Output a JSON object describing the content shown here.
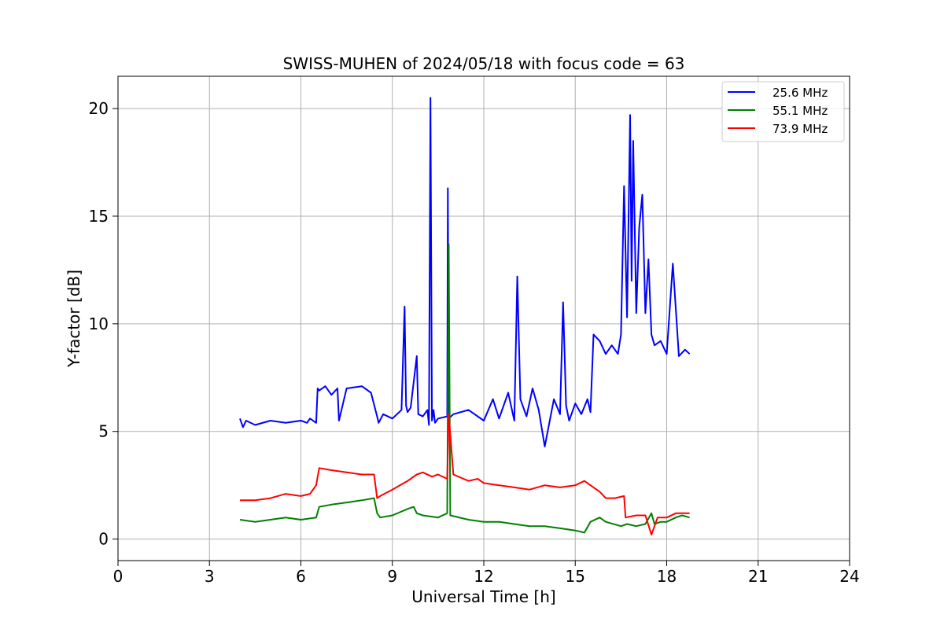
{
  "chart_data": {
    "type": "line",
    "title": "SWISS-MUHEN of 2024/05/18 with focus code = 63",
    "xlabel": "Universal Time [h]",
    "ylabel": "Y-factor [dB]",
    "xlim": [
      0,
      24
    ],
    "ylim": [
      -1,
      21.5
    ],
    "xticks": [
      0,
      3,
      6,
      9,
      12,
      15,
      18,
      21,
      24
    ],
    "yticks": [
      0,
      5,
      10,
      15,
      20
    ],
    "grid": true,
    "legend_position": "top-right",
    "series": [
      {
        "name": "25.6 MHz",
        "color": "#0000ff",
        "x": [
          4.0,
          4.1,
          4.2,
          4.5,
          5.0,
          5.5,
          6.0,
          6.2,
          6.3,
          6.5,
          6.55,
          6.6,
          6.8,
          7.0,
          7.2,
          7.25,
          7.5,
          8.0,
          8.3,
          8.5,
          8.55,
          8.7,
          9.0,
          9.3,
          9.4,
          9.45,
          9.5,
          9.6,
          9.8,
          9.85,
          10.0,
          10.15,
          10.2,
          10.25,
          10.3,
          10.35,
          10.4,
          10.5,
          10.8,
          10.82,
          10.85,
          11.0,
          11.5,
          12.0,
          12.3,
          12.5,
          12.8,
          13.0,
          13.1,
          13.2,
          13.4,
          13.6,
          13.8,
          14.0,
          14.3,
          14.5,
          14.6,
          14.7,
          14.8,
          15.0,
          15.2,
          15.4,
          15.5,
          15.6,
          15.8,
          16.0,
          16.2,
          16.4,
          16.5,
          16.6,
          16.7,
          16.8,
          16.85,
          16.9,
          17.0,
          17.1,
          17.2,
          17.3,
          17.4,
          17.5,
          17.6,
          17.8,
          18.0,
          18.2,
          18.4,
          18.6,
          18.75
        ],
        "y": [
          5.6,
          5.2,
          5.5,
          5.3,
          5.5,
          5.4,
          5.5,
          5.4,
          5.6,
          5.4,
          7.0,
          6.9,
          7.1,
          6.7,
          7.0,
          5.5,
          7.0,
          7.1,
          6.8,
          5.7,
          5.4,
          5.8,
          5.6,
          6.0,
          10.8,
          6.2,
          5.9,
          6.1,
          8.5,
          5.8,
          5.7,
          6.0,
          5.3,
          20.5,
          5.5,
          6.0,
          5.4,
          5.6,
          5.7,
          16.3,
          5.6,
          5.8,
          6.0,
          5.5,
          6.5,
          5.6,
          6.8,
          5.5,
          12.2,
          6.5,
          5.7,
          7.0,
          6.0,
          4.3,
          6.5,
          5.8,
          11.0,
          6.2,
          5.5,
          6.3,
          5.8,
          6.5,
          5.9,
          9.5,
          9.2,
          8.6,
          9.0,
          8.6,
          9.5,
          16.4,
          10.3,
          19.7,
          12.0,
          18.5,
          10.5,
          14.5,
          16.0,
          10.5,
          13.0,
          9.5,
          9.0,
          9.2,
          8.6,
          12.8,
          8.5,
          8.8,
          8.6
        ]
      },
      {
        "name": "55.1 MHz",
        "color": "#008000",
        "x": [
          4.0,
          4.5,
          5.0,
          5.5,
          6.0,
          6.5,
          6.6,
          7.0,
          7.5,
          8.0,
          8.4,
          8.5,
          8.6,
          9.0,
          9.5,
          9.7,
          9.8,
          10.0,
          10.5,
          10.8,
          10.85,
          10.9,
          11.5,
          12.0,
          12.5,
          13.0,
          13.5,
          14.0,
          14.5,
          15.0,
          15.3,
          15.5,
          15.8,
          16.0,
          16.5,
          16.7,
          17.0,
          17.3,
          17.5,
          17.6,
          17.8,
          18.0,
          18.3,
          18.5,
          18.75
        ],
        "y": [
          0.9,
          0.8,
          0.9,
          1.0,
          0.9,
          1.0,
          1.5,
          1.6,
          1.7,
          1.8,
          1.9,
          1.2,
          1.0,
          1.1,
          1.4,
          1.5,
          1.2,
          1.1,
          1.0,
          1.2,
          13.7,
          1.1,
          0.9,
          0.8,
          0.8,
          0.7,
          0.6,
          0.6,
          0.5,
          0.4,
          0.3,
          0.8,
          1.0,
          0.8,
          0.6,
          0.7,
          0.6,
          0.7,
          1.2,
          0.7,
          0.8,
          0.8,
          1.0,
          1.1,
          1.0
        ]
      },
      {
        "name": "73.9 MHz",
        "color": "#ff0000",
        "x": [
          4.0,
          4.5,
          5.0,
          5.5,
          6.0,
          6.3,
          6.5,
          6.6,
          7.0,
          7.5,
          8.0,
          8.4,
          8.5,
          8.6,
          9.0,
          9.5,
          9.8,
          10.0,
          10.3,
          10.5,
          10.8,
          10.85,
          11.0,
          11.5,
          11.8,
          12.0,
          12.5,
          13.0,
          13.5,
          14.0,
          14.5,
          15.0,
          15.3,
          15.5,
          15.8,
          16.0,
          16.3,
          16.6,
          16.65,
          17.0,
          17.3,
          17.5,
          17.7,
          18.0,
          18.3,
          18.75
        ],
        "y": [
          1.8,
          1.8,
          1.9,
          2.1,
          2.0,
          2.1,
          2.5,
          3.3,
          3.2,
          3.1,
          3.0,
          3.0,
          1.9,
          2.0,
          2.3,
          2.7,
          3.0,
          3.1,
          2.9,
          3.0,
          2.8,
          5.8,
          3.0,
          2.7,
          2.8,
          2.6,
          2.5,
          2.4,
          2.3,
          2.5,
          2.4,
          2.5,
          2.7,
          2.5,
          2.2,
          1.9,
          1.9,
          2.0,
          1.0,
          1.1,
          1.1,
          0.2,
          1.0,
          1.0,
          1.2,
          1.2
        ]
      }
    ]
  }
}
